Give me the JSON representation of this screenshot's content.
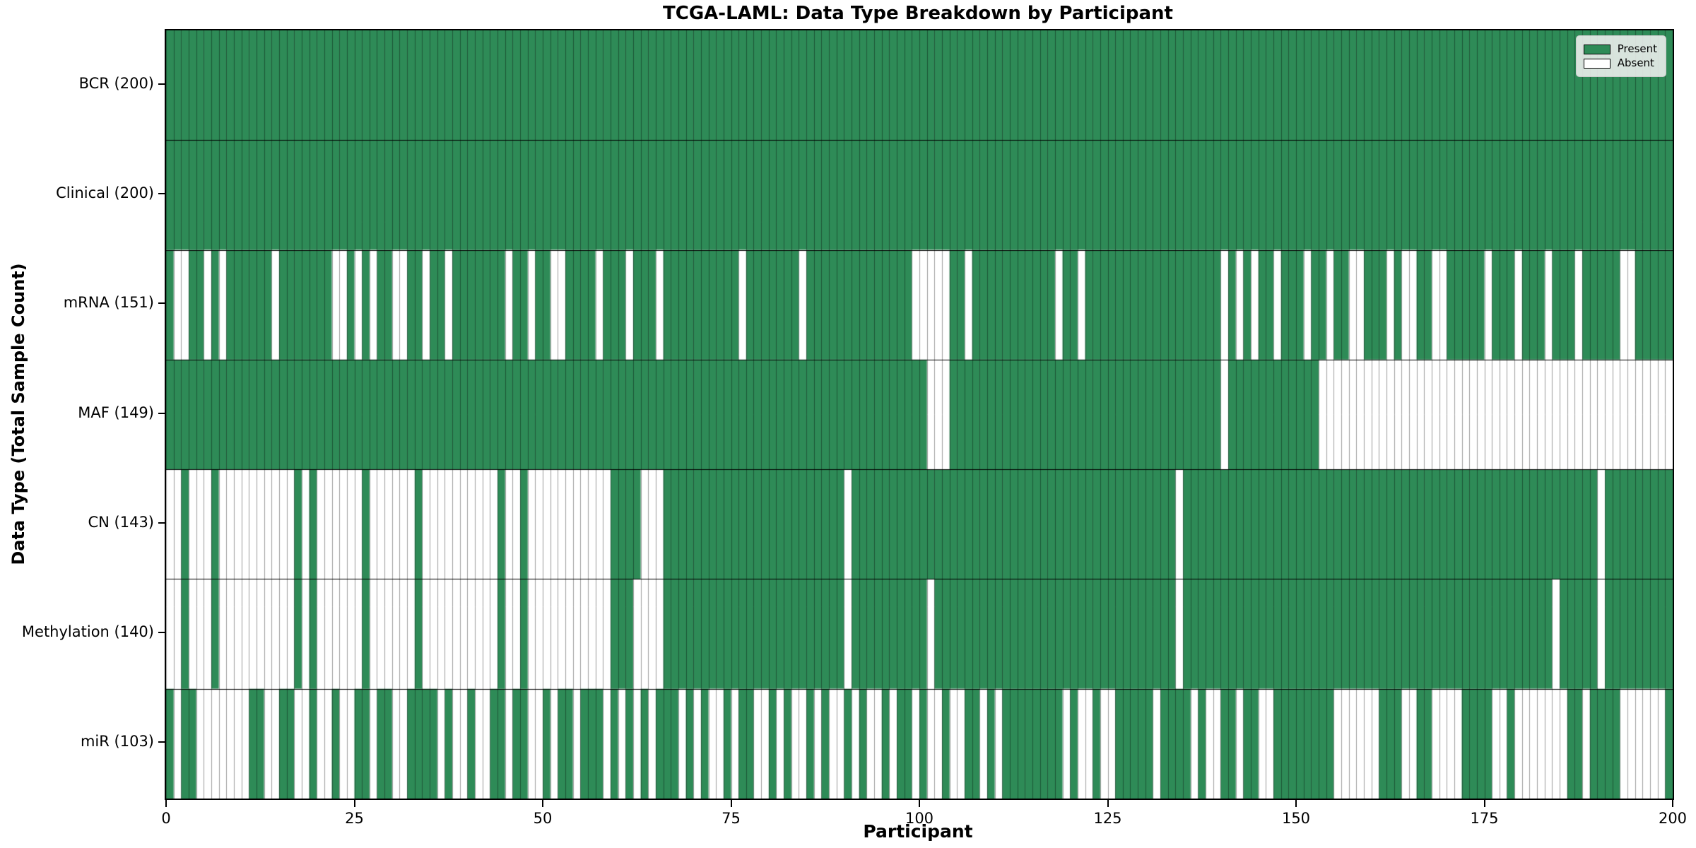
{
  "title": "TCGA-LAML: Data Type Breakdown by Participant",
  "xlabel": "Participant",
  "ylabel": "Data Type (Total Sample Count)",
  "legend": {
    "present_label": "Present",
    "absent_label": "Absent"
  },
  "colors": {
    "present": "#2e8b57",
    "absent": "#ffffff",
    "cell_border": "rgba(0,0,0,0.38)",
    "row_separator": "#000000",
    "legend_bg": "rgba(240,240,240,0.88)"
  },
  "x_ticks": [
    0,
    25,
    50,
    75,
    100,
    125,
    150,
    175,
    200
  ],
  "chart_data": {
    "type": "heatmap",
    "title": "TCGA-LAML: Data Type Breakdown by Participant",
    "xlabel": "Participant",
    "ylabel": "Data Type (Total Sample Count)",
    "x_range": [
      0,
      200
    ],
    "participants": 200,
    "grid": false,
    "legend_position": "upper right",
    "legend_entries": [
      "Present",
      "Absent"
    ],
    "value_encoding": {
      "present": 1,
      "absent": 0
    },
    "rows": [
      {
        "label": "BCR (200)",
        "name": "BCR",
        "total": 200,
        "absent": []
      },
      {
        "label": "Clinical (200)",
        "name": "Clinical",
        "total": 200,
        "absent": []
      },
      {
        "label": "mRNA (151)",
        "name": "mRNA",
        "total": 151,
        "absent": [
          1,
          2,
          5,
          7,
          14,
          22,
          23,
          25,
          27,
          30,
          31,
          34,
          37,
          45,
          48,
          51,
          52,
          57,
          61,
          65,
          76,
          84,
          99,
          100,
          101,
          102,
          103,
          106,
          118,
          121,
          140,
          142,
          144,
          147,
          151,
          154,
          157,
          158,
          162,
          164,
          165,
          168,
          169,
          175,
          179,
          183,
          187,
          193,
          194
        ]
      },
      {
        "label": "MAF (149)",
        "name": "MAF",
        "total": 149,
        "absent": [
          101,
          102,
          103,
          140,
          153,
          154,
          155,
          156,
          157,
          158,
          159,
          160,
          161,
          162,
          163,
          164,
          165,
          166,
          167,
          168,
          169,
          170,
          171,
          172,
          173,
          174,
          175,
          176,
          177,
          178,
          179,
          180,
          181,
          182,
          183,
          184,
          185,
          186,
          187,
          188,
          189,
          190,
          191,
          192,
          193,
          194,
          195,
          196,
          197,
          198,
          199
        ]
      },
      {
        "label": "CN (143)",
        "name": "CN",
        "total": 143,
        "absent": [
          0,
          1,
          3,
          4,
          5,
          7,
          8,
          9,
          10,
          11,
          12,
          13,
          14,
          15,
          16,
          18,
          20,
          21,
          22,
          23,
          24,
          25,
          27,
          28,
          29,
          30,
          31,
          32,
          34,
          35,
          36,
          37,
          38,
          39,
          40,
          41,
          42,
          43,
          45,
          46,
          48,
          49,
          50,
          51,
          52,
          53,
          54,
          55,
          56,
          57,
          58,
          63,
          64,
          65,
          90,
          134,
          190
        ]
      },
      {
        "label": "Methylation (140)",
        "name": "Methylation",
        "total": 140,
        "absent": [
          0,
          1,
          3,
          4,
          5,
          7,
          8,
          9,
          10,
          11,
          12,
          13,
          14,
          15,
          16,
          18,
          20,
          21,
          22,
          23,
          24,
          25,
          27,
          28,
          29,
          30,
          31,
          32,
          34,
          35,
          36,
          37,
          38,
          39,
          40,
          41,
          42,
          43,
          45,
          46,
          48,
          49,
          50,
          51,
          52,
          53,
          54,
          55,
          56,
          57,
          58,
          62,
          63,
          64,
          65,
          90,
          101,
          134,
          184,
          190
        ]
      },
      {
        "label": "miR (103)",
        "name": "miR",
        "total": 103,
        "absent": [
          1,
          4,
          5,
          6,
          7,
          8,
          9,
          10,
          13,
          14,
          17,
          18,
          20,
          21,
          23,
          24,
          27,
          30,
          31,
          36,
          38,
          39,
          41,
          42,
          45,
          48,
          49,
          51,
          54,
          58,
          60,
          62,
          64,
          68,
          70,
          72,
          73,
          75,
          78,
          79,
          81,
          83,
          84,
          86,
          88,
          89,
          91,
          93,
          94,
          96,
          99,
          101,
          102,
          104,
          105,
          108,
          110,
          119,
          121,
          122,
          124,
          125,
          131,
          136,
          138,
          139,
          142,
          145,
          146,
          155,
          156,
          157,
          158,
          159,
          160,
          164,
          165,
          168,
          169,
          170,
          171,
          176,
          177,
          179,
          180,
          181,
          182,
          183,
          184,
          185,
          188,
          193,
          194,
          195,
          196,
          197,
          198
        ]
      }
    ]
  }
}
